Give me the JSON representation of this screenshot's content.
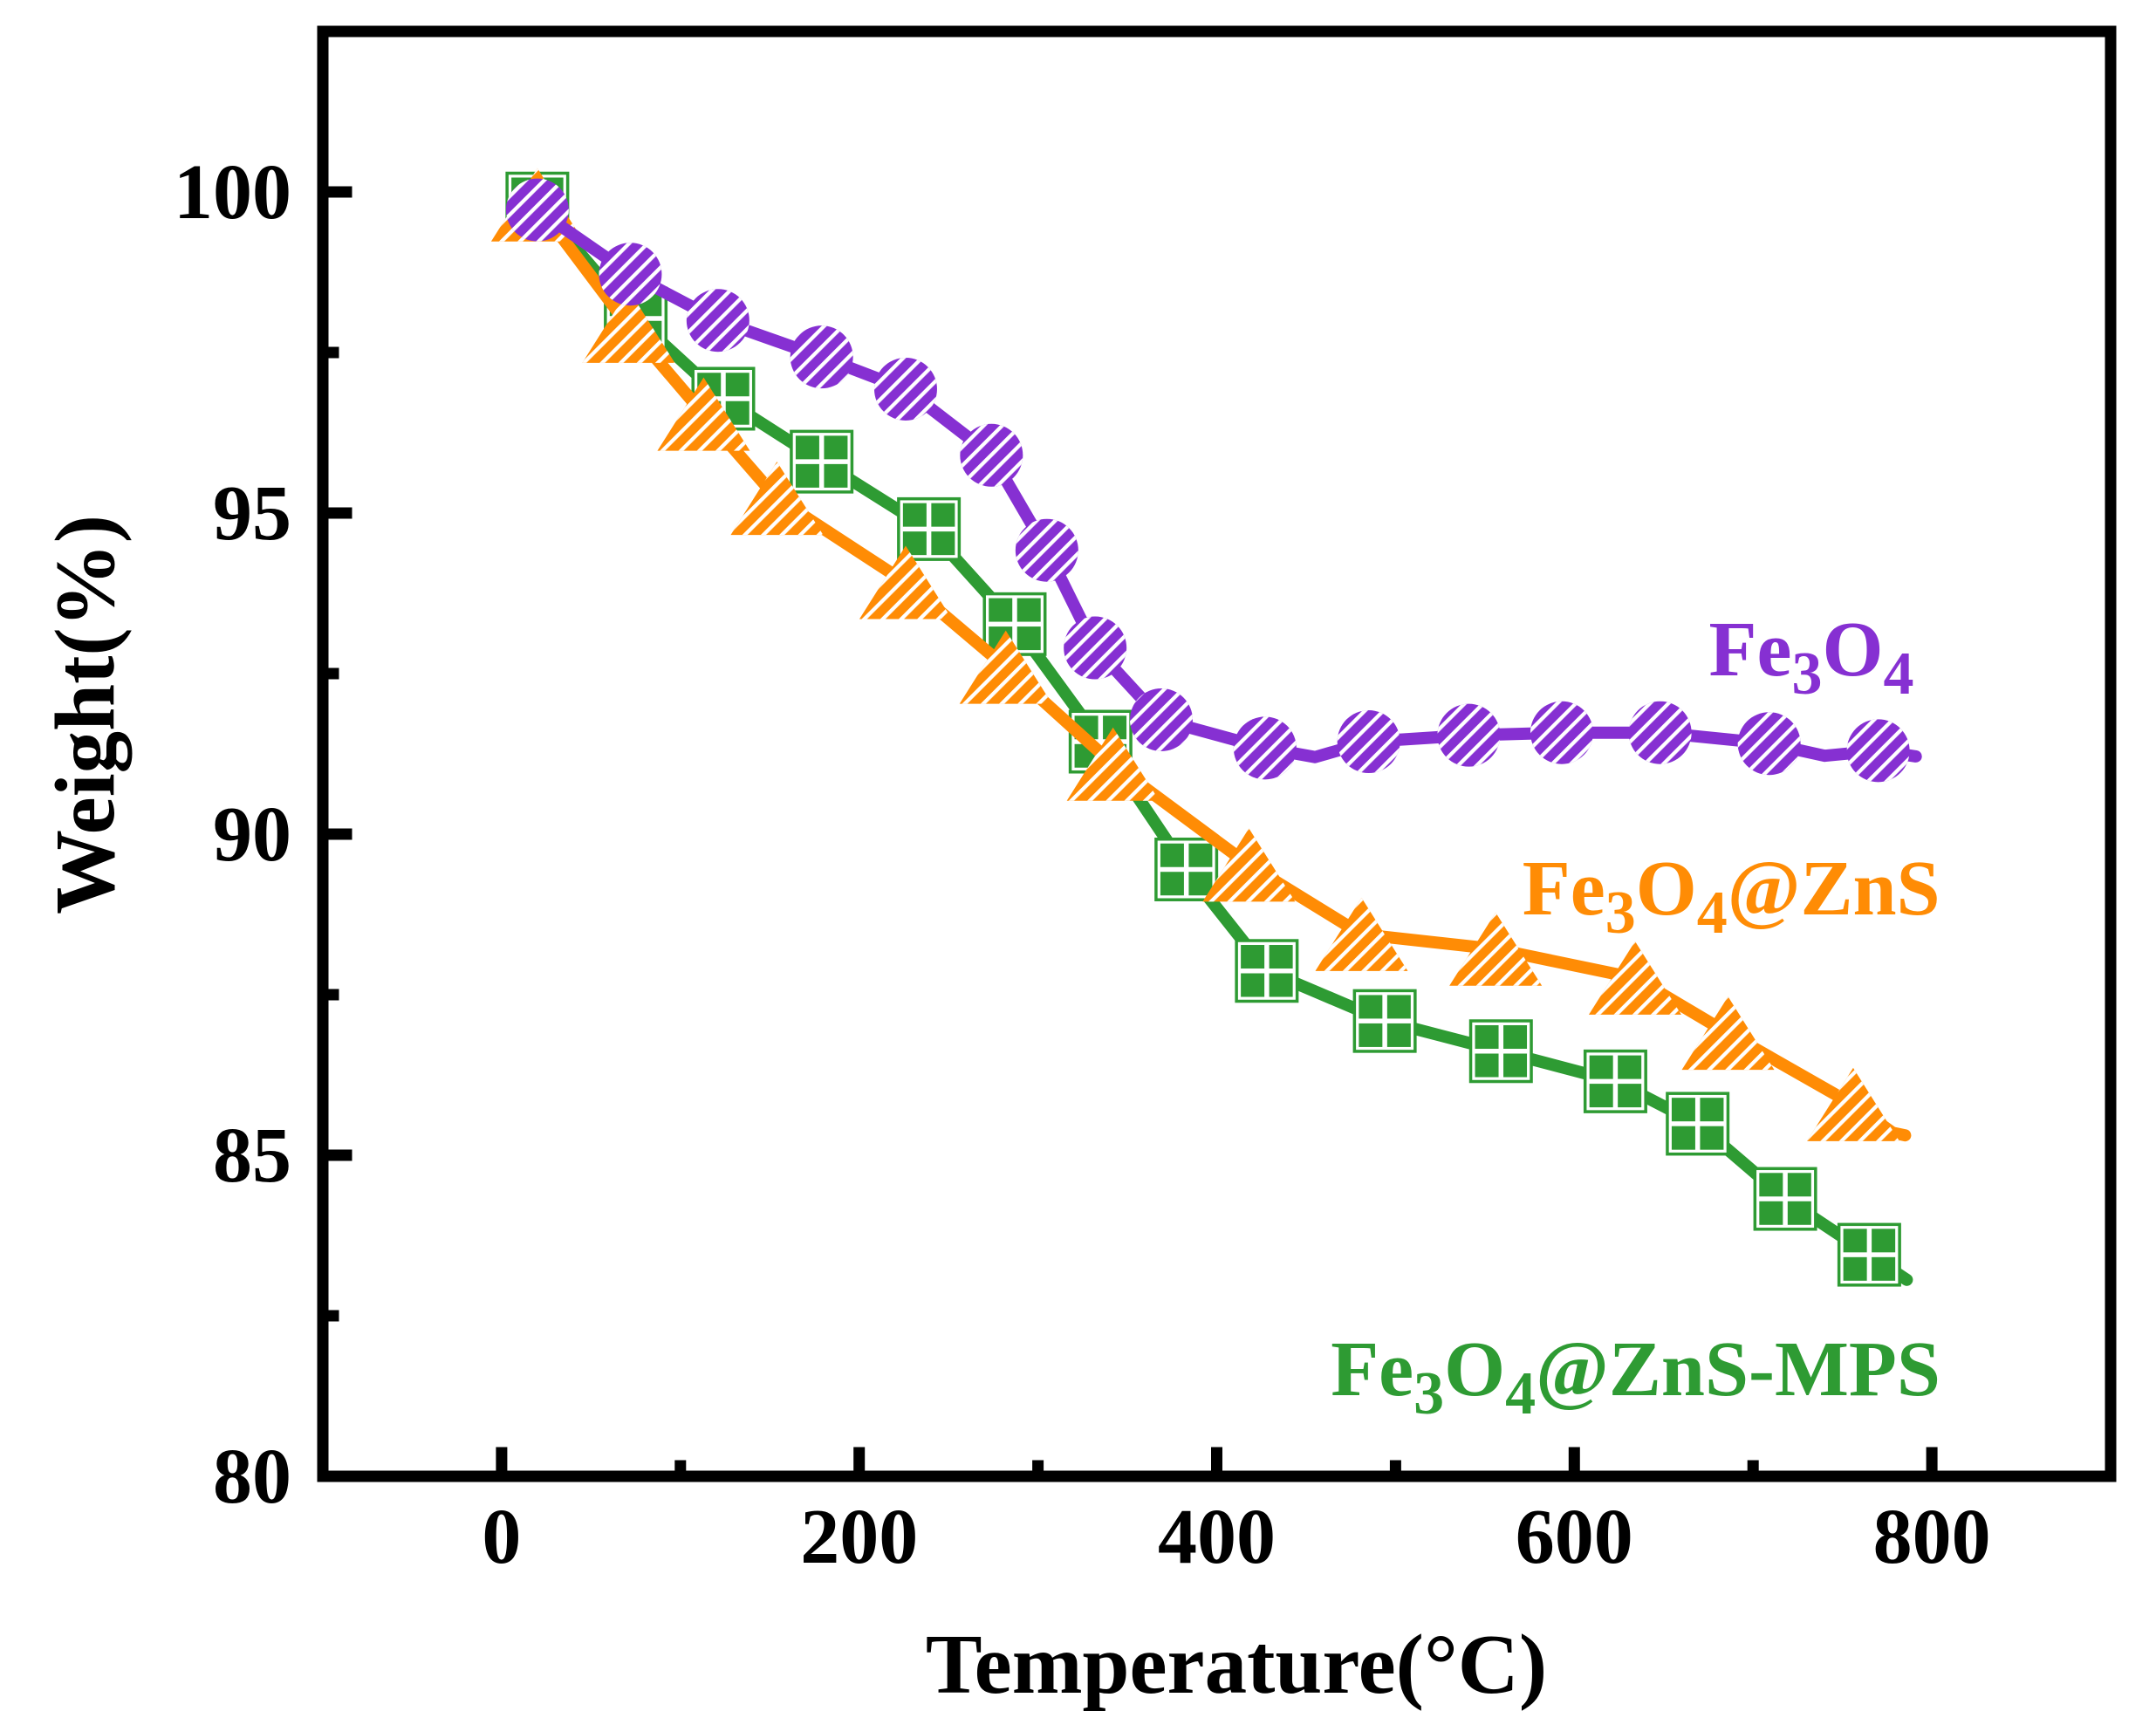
{
  "figure": {
    "kind": "TGA thermogravimetric analysis line chart",
    "background_color": "#ffffff",
    "axis_color": "#000000"
  },
  "chart_data": {
    "type": "line",
    "title": "",
    "xlabel": "Temperature(°C)",
    "ylabel": "Weight(%)",
    "xlim": [
      -100,
      900
    ],
    "ylim": [
      80,
      102.5
    ],
    "x_ticks": [
      0,
      200,
      400,
      600,
      800
    ],
    "x_minor_ticks": [
      100,
      300,
      500,
      700
    ],
    "y_ticks": [
      80,
      85,
      90,
      95,
      100
    ],
    "y_minor_ticks": [
      82.5,
      87.5,
      92.5,
      97.5
    ],
    "grid": false,
    "legend_position": "inline-labels",
    "series": [
      {
        "name": "Fe3O4@ZnS-MPS",
        "label_parts": [
          [
            "Fe",
            0
          ],
          [
            "3",
            1
          ],
          [
            "O",
            0
          ],
          [
            "4",
            1
          ],
          [
            "@ZnS-MPS",
            0
          ]
        ],
        "color": "#2E9B33",
        "marker": "grid-square",
        "label_anchor_x": 634.3,
        "label_anchor_y": 81.67,
        "marker_points": [
          [
            20,
            99.82
          ],
          [
            75,
            98.03
          ],
          [
            124,
            96.78
          ],
          [
            179,
            95.8
          ],
          [
            239,
            94.75
          ],
          [
            287,
            93.27
          ],
          [
            335,
            91.44
          ],
          [
            383,
            89.45
          ],
          [
            428,
            87.87
          ],
          [
            494,
            87.09
          ],
          [
            559,
            86.62
          ],
          [
            623,
            86.15
          ],
          [
            669,
            85.49
          ],
          [
            718,
            84.32
          ],
          [
            765,
            83.45
          ]
        ],
        "line_points": [
          [
            20,
            99.82
          ],
          [
            75,
            98.03
          ],
          [
            124,
            96.78
          ],
          [
            179,
            95.8
          ],
          [
            239,
            94.75
          ],
          [
            287,
            93.27
          ],
          [
            335,
            91.44
          ],
          [
            383,
            89.45
          ],
          [
            428,
            87.87
          ],
          [
            494,
            87.09
          ],
          [
            559,
            86.62
          ],
          [
            623,
            86.15
          ],
          [
            669,
            85.49
          ],
          [
            718,
            84.32
          ],
          [
            765,
            83.45
          ],
          [
            786,
            83.06
          ]
        ]
      },
      {
        "name": "Fe3O4@ZnS",
        "label_parts": [
          [
            "Fe",
            0
          ],
          [
            "3",
            1
          ],
          [
            "O",
            0
          ],
          [
            "4",
            1
          ],
          [
            "@ZnS",
            0
          ]
        ],
        "color": "#FF8C05",
        "marker": "striped-triangle",
        "label_anchor_x": 687.8,
        "label_anchor_y": 89.16,
        "marker_points": [
          [
            20,
            99.8
          ],
          [
            71,
            97.91
          ],
          [
            113,
            96.54
          ],
          [
            154,
            95.23
          ],
          [
            226,
            93.92
          ],
          [
            282,
            92.6
          ],
          [
            342,
            91.09
          ],
          [
            418,
            89.52
          ],
          [
            481,
            88.44
          ],
          [
            556,
            88.21
          ],
          [
            634,
            87.76
          ],
          [
            686,
            86.9
          ],
          [
            756,
            85.79
          ]
        ],
        "line_points": [
          [
            20,
            99.8
          ],
          [
            71,
            97.91
          ],
          [
            113,
            96.54
          ],
          [
            154,
            95.23
          ],
          [
            226,
            93.92
          ],
          [
            282,
            92.6
          ],
          [
            342,
            91.09
          ],
          [
            418,
            89.52
          ],
          [
            481,
            88.44
          ],
          [
            556,
            88.21
          ],
          [
            634,
            87.76
          ],
          [
            686,
            86.9
          ],
          [
            756,
            85.79
          ],
          [
            778,
            85.35
          ],
          [
            785,
            85.31
          ]
        ]
      },
      {
        "name": "Fe3O4",
        "label_parts": [
          [
            "Fe",
            0
          ],
          [
            "3",
            1
          ],
          [
            "O",
            0
          ],
          [
            "4",
            1
          ]
        ],
        "color": "#8630D2",
        "marker": "striped-circle",
        "label_anchor_x": 732.6,
        "label_anchor_y": 92.88,
        "marker_points": [
          [
            20,
            99.72
          ],
          [
            72,
            98.72
          ],
          [
            121,
            98.0
          ],
          [
            179,
            97.43
          ],
          [
            226,
            96.93
          ],
          [
            274,
            95.9
          ],
          [
            305,
            94.42
          ],
          [
            332,
            92.9
          ],
          [
            369,
            91.78
          ],
          [
            427,
            91.34
          ],
          [
            485,
            91.44
          ],
          [
            541,
            91.54
          ],
          [
            593,
            91.58
          ],
          [
            648,
            91.58
          ],
          [
            709,
            91.41
          ],
          [
            770,
            91.3
          ]
        ],
        "line_points": [
          [
            20,
            99.72
          ],
          [
            72,
            98.72
          ],
          [
            121,
            98.0
          ],
          [
            179,
            97.43
          ],
          [
            226,
            96.93
          ],
          [
            274,
            95.9
          ],
          [
            305,
            94.42
          ],
          [
            332,
            92.9
          ],
          [
            369,
            91.78
          ],
          [
            427,
            91.34
          ],
          [
            455,
            91.2
          ],
          [
            485,
            91.44
          ],
          [
            541,
            91.54
          ],
          [
            593,
            91.58
          ],
          [
            648,
            91.58
          ],
          [
            709,
            91.41
          ],
          [
            740,
            91.22
          ],
          [
            770,
            91.3
          ],
          [
            791,
            91.21
          ]
        ]
      }
    ]
  }
}
